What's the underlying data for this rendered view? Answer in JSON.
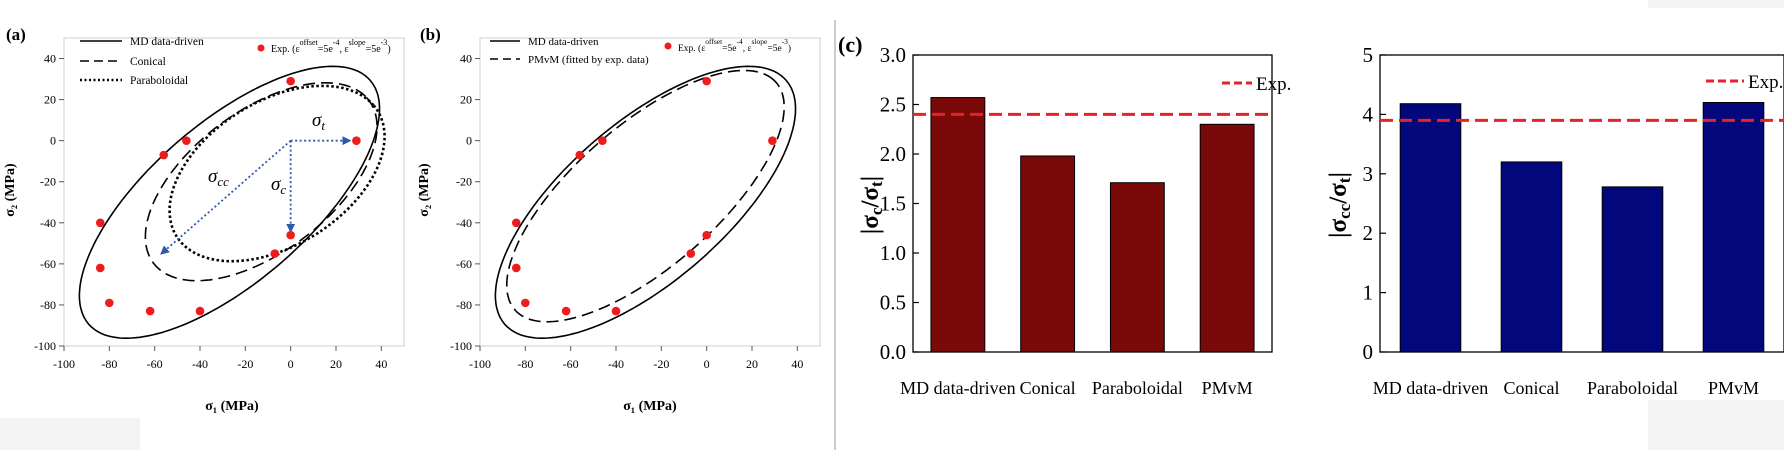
{
  "chart_data": [
    {
      "type": "scatter",
      "panel_label": "(a)",
      "xlabel": "σ₁ (MPa)",
      "ylabel": "σ₂ (MPa)",
      "xlim": [
        -100,
        50
      ],
      "ylim": [
        -100,
        50
      ],
      "x_ticks": [
        "-100",
        "-80",
        "-60",
        "-40",
        "-20",
        "0",
        "20",
        "40"
      ],
      "y_ticks": [
        "-100",
        "-80",
        "-60",
        "-40",
        "-20",
        "0",
        "20",
        "40"
      ],
      "legend": {
        "curve1": "MD data-driven",
        "curve2": "Conical",
        "curve3": "Paraboloidal",
        "exp_prefix": "Exp. (ε",
        "exp_sup1": "offset",
        "exp_mid": "=5e",
        "exp_sup2": "-4",
        "exp_mid2": ", ε",
        "exp_sup3": "slope",
        "exp_mid3": "=5e",
        "exp_sup4": "-3",
        "exp_end": ")"
      },
      "annotations": {
        "sigma_t": "σt",
        "sigma_c": "σc",
        "sigma_cc": "σcc"
      },
      "series": [
        {
          "name": "MD data-driven",
          "style": "solid"
        },
        {
          "name": "Conical",
          "style": "dash"
        },
        {
          "name": "Paraboloidal",
          "style": "dotted"
        },
        {
          "name": "Exp.",
          "style": "marker",
          "points": [
            [
              0,
              29
            ],
            [
              29,
              0
            ],
            [
              -46,
              0
            ],
            [
              -56,
              -7
            ],
            [
              -84,
              -40
            ],
            [
              -84,
              -62
            ],
            [
              -80,
              -79
            ],
            [
              -62,
              -83
            ],
            [
              -40,
              -83
            ],
            [
              -7,
              -55
            ],
            [
              0,
              -46
            ]
          ]
        }
      ]
    },
    {
      "type": "scatter",
      "panel_label": "(b)",
      "xlabel": "σ₁ (MPa)",
      "ylabel": "σ₂ (MPa)",
      "xlim": [
        -100,
        50
      ],
      "ylim": [
        -100,
        50
      ],
      "x_ticks": [
        "-100",
        "-80",
        "-60",
        "-40",
        "-20",
        "0",
        "20",
        "40"
      ],
      "y_ticks": [
        "-100",
        "-80",
        "-60",
        "-40",
        "-20",
        "0",
        "20",
        "40"
      ],
      "legend": {
        "curve1": "MD data-driven",
        "curve2": "PMvM (fitted by exp. data)",
        "exp_prefix": "Exp. (ε",
        "exp_sup1": "offset",
        "exp_mid": "=5e",
        "exp_sup2": "-4",
        "exp_mid2": ", ε",
        "exp_sup3": "slope",
        "exp_mid3": "=5e",
        "exp_sup4": "-3",
        "exp_end": ")"
      },
      "series": [
        {
          "name": "MD data-driven",
          "style": "solid"
        },
        {
          "name": "PMvM (fitted by exp. data)",
          "style": "dash"
        },
        {
          "name": "Exp.",
          "style": "marker",
          "points": [
            [
              0,
              29
            ],
            [
              29,
              0
            ],
            [
              -46,
              0
            ],
            [
              -56,
              -7
            ],
            [
              -84,
              -40
            ],
            [
              -84,
              -62
            ],
            [
              -80,
              -79
            ],
            [
              -62,
              -83
            ],
            [
              -40,
              -83
            ],
            [
              -7,
              -55
            ],
            [
              0,
              -46
            ]
          ]
        }
      ]
    },
    {
      "type": "bar",
      "panel_label": "(c)",
      "ylabel": "|σc/σt|",
      "categories": [
        "MD data-driven",
        "Conical",
        "Paraboloidal",
        "PMvM"
      ],
      "values": [
        2.57,
        1.98,
        1.71,
        2.3
      ],
      "ylim": [
        0,
        3.0
      ],
      "y_ticks": [
        "0.0",
        "0.5",
        "1.0",
        "1.5",
        "2.0",
        "2.5",
        "3.0"
      ],
      "y_tick_values": [
        0,
        0.5,
        1.0,
        1.5,
        2.0,
        2.5,
        3.0
      ],
      "reference_line": {
        "label": "Exp.",
        "value": 2.4,
        "color": "#e8202a"
      },
      "bar_color": "#7a0a0a"
    },
    {
      "type": "bar",
      "panel_label": "",
      "ylabel": "|σcc/σt|",
      "categories": [
        "MD data-driven",
        "Conical",
        "Paraboloidal",
        "PMvM"
      ],
      "values": [
        4.18,
        3.2,
        2.78,
        4.2
      ],
      "ylim": [
        0,
        5
      ],
      "y_ticks": [
        "0",
        "1",
        "2",
        "3",
        "4",
        "5"
      ],
      "y_tick_values": [
        0,
        1,
        2,
        3,
        4,
        5
      ],
      "reference_line": {
        "label": "Exp.",
        "value": 3.9,
        "color": "#e8202a"
      },
      "bar_color": "#02087c"
    }
  ]
}
